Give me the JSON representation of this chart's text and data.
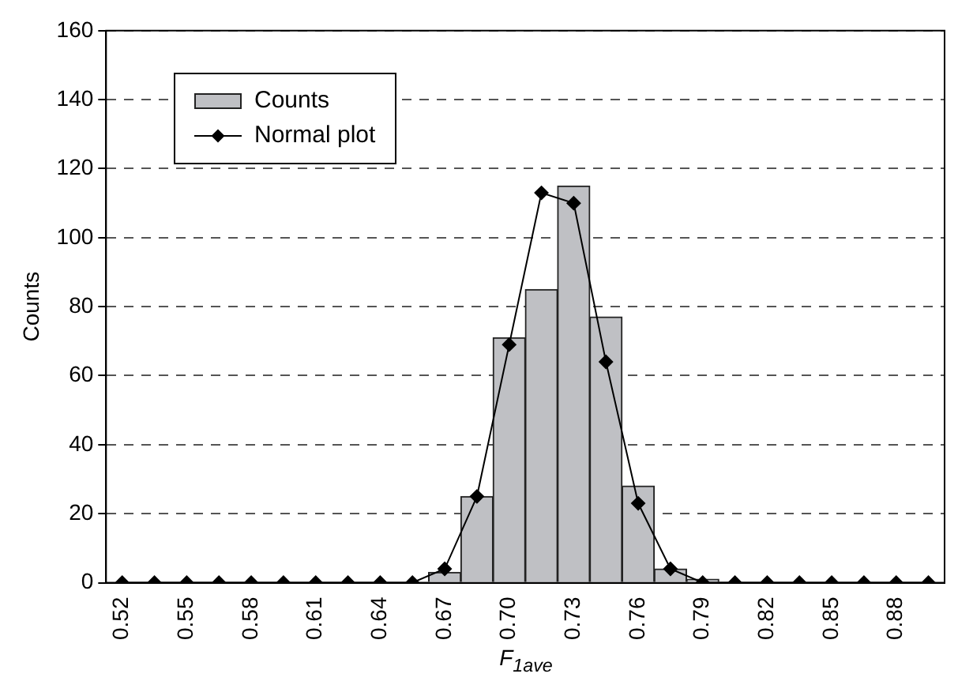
{
  "chart_data": {
    "type": "bar",
    "xlabel": "F$_{1ave}$",
    "ylabel": "Counts",
    "categories": [
      "0.52",
      null,
      "0.55",
      null,
      "0.58",
      null,
      "0.61",
      null,
      "0.64",
      null,
      "0.67",
      null,
      "0.70",
      null,
      "0.73",
      null,
      "0.76",
      null,
      "0.79",
      null,
      "0.82",
      null,
      "0.85",
      null,
      "0.88",
      null
    ],
    "series": [
      {
        "name": "Counts",
        "color": "#bfc0c4",
        "values": [
          0,
          0,
          0,
          0,
          0,
          0,
          0,
          0,
          0,
          0,
          3,
          25,
          71,
          85,
          115,
          77,
          28,
          4,
          1,
          0,
          0,
          0,
          0,
          0,
          0,
          0
        ]
      },
      {
        "name": "Normal plot",
        "type": "line",
        "color": "#000000",
        "marker": "diamond",
        "values": [
          0,
          0,
          0,
          0,
          0,
          0,
          0,
          0,
          0,
          0,
          4,
          25,
          69,
          113,
          110,
          64,
          23,
          4,
          0,
          0,
          0,
          0,
          0,
          0,
          0,
          0
        ]
      }
    ],
    "ylim": [
      0,
      160
    ],
    "yticks": [
      0,
      20,
      40,
      60,
      80,
      100,
      120,
      140,
      160
    ],
    "grid": "y",
    "legend": "top left"
  }
}
